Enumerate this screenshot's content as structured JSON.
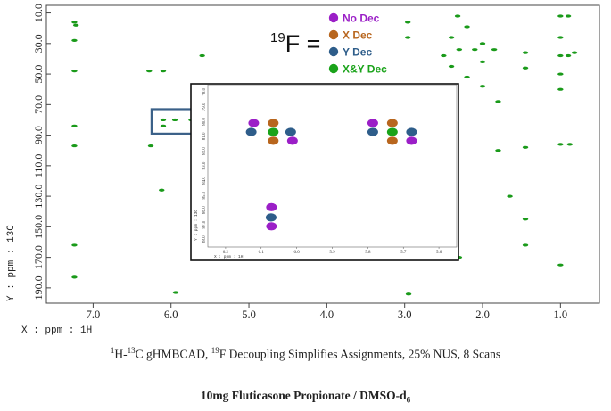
{
  "chart_data": {
    "type": "heatmap",
    "nucleus_label": "19F =",
    "x_axis_label": "X : ppm : 1H",
    "y_axis_label": "Y : ppm : 13C",
    "x_ticks": [
      "7.0",
      "6.0",
      "5.0",
      "4.0",
      "3.0",
      "2.0",
      "1.0"
    ],
    "y_ticks": [
      "10.0",
      "30.0",
      "50.0",
      "70.0",
      "90.0",
      "110.0",
      "130.0",
      "150.0",
      "170.0",
      "190.0"
    ],
    "xlim": [
      7.6,
      0.5
    ],
    "ylim": [
      5,
      200
    ],
    "main_peak_color": "#1a9a1a",
    "main_peaks": [
      {
        "x": 7.24,
        "y": 16
      },
      {
        "x": 7.22,
        "y": 18
      },
      {
        "x": 7.24,
        "y": 28
      },
      {
        "x": 7.24,
        "y": 48
      },
      {
        "x": 7.24,
        "y": 84
      },
      {
        "x": 7.24,
        "y": 97
      },
      {
        "x": 7.24,
        "y": 162
      },
      {
        "x": 7.24,
        "y": 183
      },
      {
        "x": 6.28,
        "y": 48
      },
      {
        "x": 6.1,
        "y": 48
      },
      {
        "x": 6.1,
        "y": 80
      },
      {
        "x": 5.95,
        "y": 80
      },
      {
        "x": 5.74,
        "y": 80
      },
      {
        "x": 6.1,
        "y": 84
      },
      {
        "x": 6.26,
        "y": 97
      },
      {
        "x": 6.12,
        "y": 126
      },
      {
        "x": 5.94,
        "y": 193
      },
      {
        "x": 5.6,
        "y": 38
      },
      {
        "x": 5.6,
        "y": 119
      },
      {
        "x": 5.6,
        "y": 161
      },
      {
        "x": 2.96,
        "y": 16
      },
      {
        "x": 2.96,
        "y": 26
      },
      {
        "x": 2.95,
        "y": 132
      },
      {
        "x": 2.95,
        "y": 142
      },
      {
        "x": 2.95,
        "y": 150
      },
      {
        "x": 2.95,
        "y": 194
      },
      {
        "x": 2.32,
        "y": 12
      },
      {
        "x": 2.2,
        "y": 19
      },
      {
        "x": 2.4,
        "y": 26
      },
      {
        "x": 2.3,
        "y": 34
      },
      {
        "x": 2.1,
        "y": 34
      },
      {
        "x": 2.5,
        "y": 38
      },
      {
        "x": 2.4,
        "y": 45
      },
      {
        "x": 2.2,
        "y": 52
      },
      {
        "x": 2.0,
        "y": 30
      },
      {
        "x": 2.0,
        "y": 42
      },
      {
        "x": 2.0,
        "y": 58
      },
      {
        "x": 1.85,
        "y": 34
      },
      {
        "x": 1.8,
        "y": 68
      },
      {
        "x": 1.8,
        "y": 100
      },
      {
        "x": 1.65,
        "y": 130
      },
      {
        "x": 2.3,
        "y": 170
      },
      {
        "x": 1.45,
        "y": 36
      },
      {
        "x": 1.45,
        "y": 46
      },
      {
        "x": 1.45,
        "y": 98
      },
      {
        "x": 1.45,
        "y": 145
      },
      {
        "x": 1.45,
        "y": 162
      },
      {
        "x": 1.0,
        "y": 12
      },
      {
        "x": 0.9,
        "y": 12
      },
      {
        "x": 1.0,
        "y": 26
      },
      {
        "x": 1.0,
        "y": 38
      },
      {
        "x": 1.0,
        "y": 50
      },
      {
        "x": 1.0,
        "y": 60
      },
      {
        "x": 0.9,
        "y": 38
      },
      {
        "x": 0.88,
        "y": 96
      },
      {
        "x": 1.0,
        "y": 96
      },
      {
        "x": 1.0,
        "y": 175
      },
      {
        "x": 0.82,
        "y": 36
      }
    ],
    "inset": {
      "x_ticks": [
        "6.2",
        "6.1",
        "6.0",
        "5.9",
        "5.8",
        "5.7",
        "5.6"
      ],
      "y_ticks": [
        "78.0",
        "79.0",
        "80.0",
        "81.0",
        "82.0",
        "83.0",
        "84.0",
        "85.0",
        "86.0",
        "87.0",
        "88.0"
      ],
      "y_axis_label": "Y : ppm : 13C",
      "x_axis_label": "X : ppm : 1H",
      "xlim": [
        6.25,
        5.55
      ],
      "ylim": [
        77.5,
        88.5
      ],
      "peaks": [
        {
          "x": 6.121,
          "y": 80.1,
          "series": "No Dec"
        },
        {
          "x": 6.066,
          "y": 80.1,
          "series": "X Dec"
        },
        {
          "x": 6.128,
          "y": 80.7,
          "series": "Y Dec"
        },
        {
          "x": 6.066,
          "y": 80.7,
          "series": "X&Y Dec"
        },
        {
          "x": 6.017,
          "y": 80.7,
          "series": "Y Dec"
        },
        {
          "x": 6.066,
          "y": 81.3,
          "series": "X Dec"
        },
        {
          "x": 6.012,
          "y": 81.3,
          "series": "No Dec"
        },
        {
          "x": 5.786,
          "y": 80.1,
          "series": "No Dec"
        },
        {
          "x": 5.731,
          "y": 80.1,
          "series": "X Dec"
        },
        {
          "x": 5.786,
          "y": 80.7,
          "series": "Y Dec"
        },
        {
          "x": 5.731,
          "y": 80.7,
          "series": "X&Y Dec"
        },
        {
          "x": 5.677,
          "y": 80.7,
          "series": "Y Dec"
        },
        {
          "x": 5.731,
          "y": 81.3,
          "series": "X Dec"
        },
        {
          "x": 5.677,
          "y": 81.3,
          "series": "No Dec"
        },
        {
          "x": 6.071,
          "y": 85.8,
          "series": "No Dec"
        },
        {
          "x": 6.072,
          "y": 86.5,
          "series": "Y Dec"
        },
        {
          "x": 6.071,
          "y": 87.1,
          "series": "No Dec"
        }
      ]
    },
    "series": [
      {
        "name": "No Dec",
        "color": "#9b1fc7"
      },
      {
        "name": "X Dec",
        "color": "#b8661e"
      },
      {
        "name": "Y Dec",
        "color": "#2e5d8a"
      },
      {
        "name": "X&Y Dec",
        "color": "#1aa31a"
      }
    ],
    "highlight_box_color": "#3a6088"
  },
  "caption_line1": {
    "p1": "1",
    "p2": "H-",
    "p3": "13",
    "p4": "C gHMBCAD, ",
    "p5": "19",
    "p6": "F Decoupling Simplifies Assignments, 25% NUS, 8 Scans"
  },
  "caption_line2": {
    "p1": "10mg Fluticasone Propionate / DMSO-d",
    "p2": "6"
  }
}
